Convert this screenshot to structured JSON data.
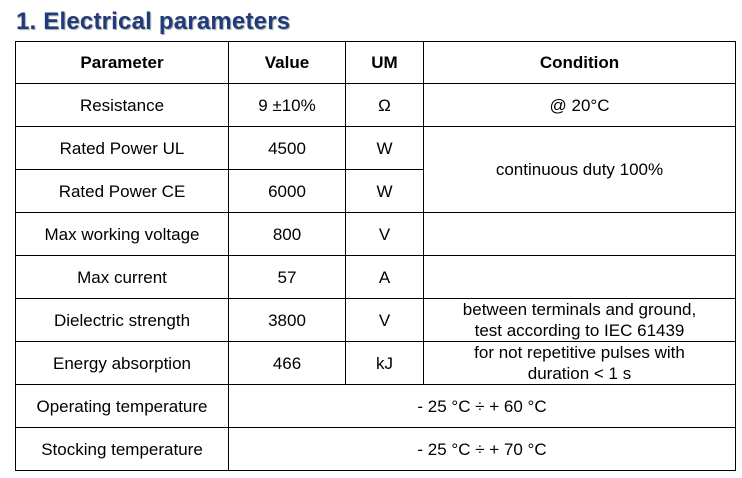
{
  "title": "1. Electrical parameters",
  "headers": {
    "parameter": "Parameter",
    "value": "Value",
    "um": "UM",
    "condition": "Condition"
  },
  "rows": [
    {
      "parameter": "Resistance",
      "value": "9 ±10%",
      "um": "Ω",
      "condition": "@ 20°C"
    },
    {
      "parameter": "Rated Power UL",
      "value": "4500",
      "um": "W",
      "condition": "continuous duty 100%"
    },
    {
      "parameter": "Rated Power CE",
      "value": "6000",
      "um": "W"
    },
    {
      "parameter": "Max working voltage",
      "value": "800",
      "um": "V",
      "condition": ""
    },
    {
      "parameter": "Max current",
      "value": "57",
      "um": "A",
      "condition": ""
    },
    {
      "parameter": "Dielectric strength",
      "value": "3800",
      "um": "V",
      "condition_line1": "between terminals and ground,",
      "condition_line2": "test according to IEC 61439"
    },
    {
      "parameter": "Energy absorption",
      "value": "466",
      "um": "kJ",
      "condition_line1": "for not repetitive pulses with",
      "condition_line2": "duration < 1 s"
    },
    {
      "parameter": "Operating temperature",
      "range": "- 25 °C ÷ + 60 °C"
    },
    {
      "parameter": "Stocking temperature",
      "range": "- 25 °C ÷ + 70 °C"
    }
  ]
}
